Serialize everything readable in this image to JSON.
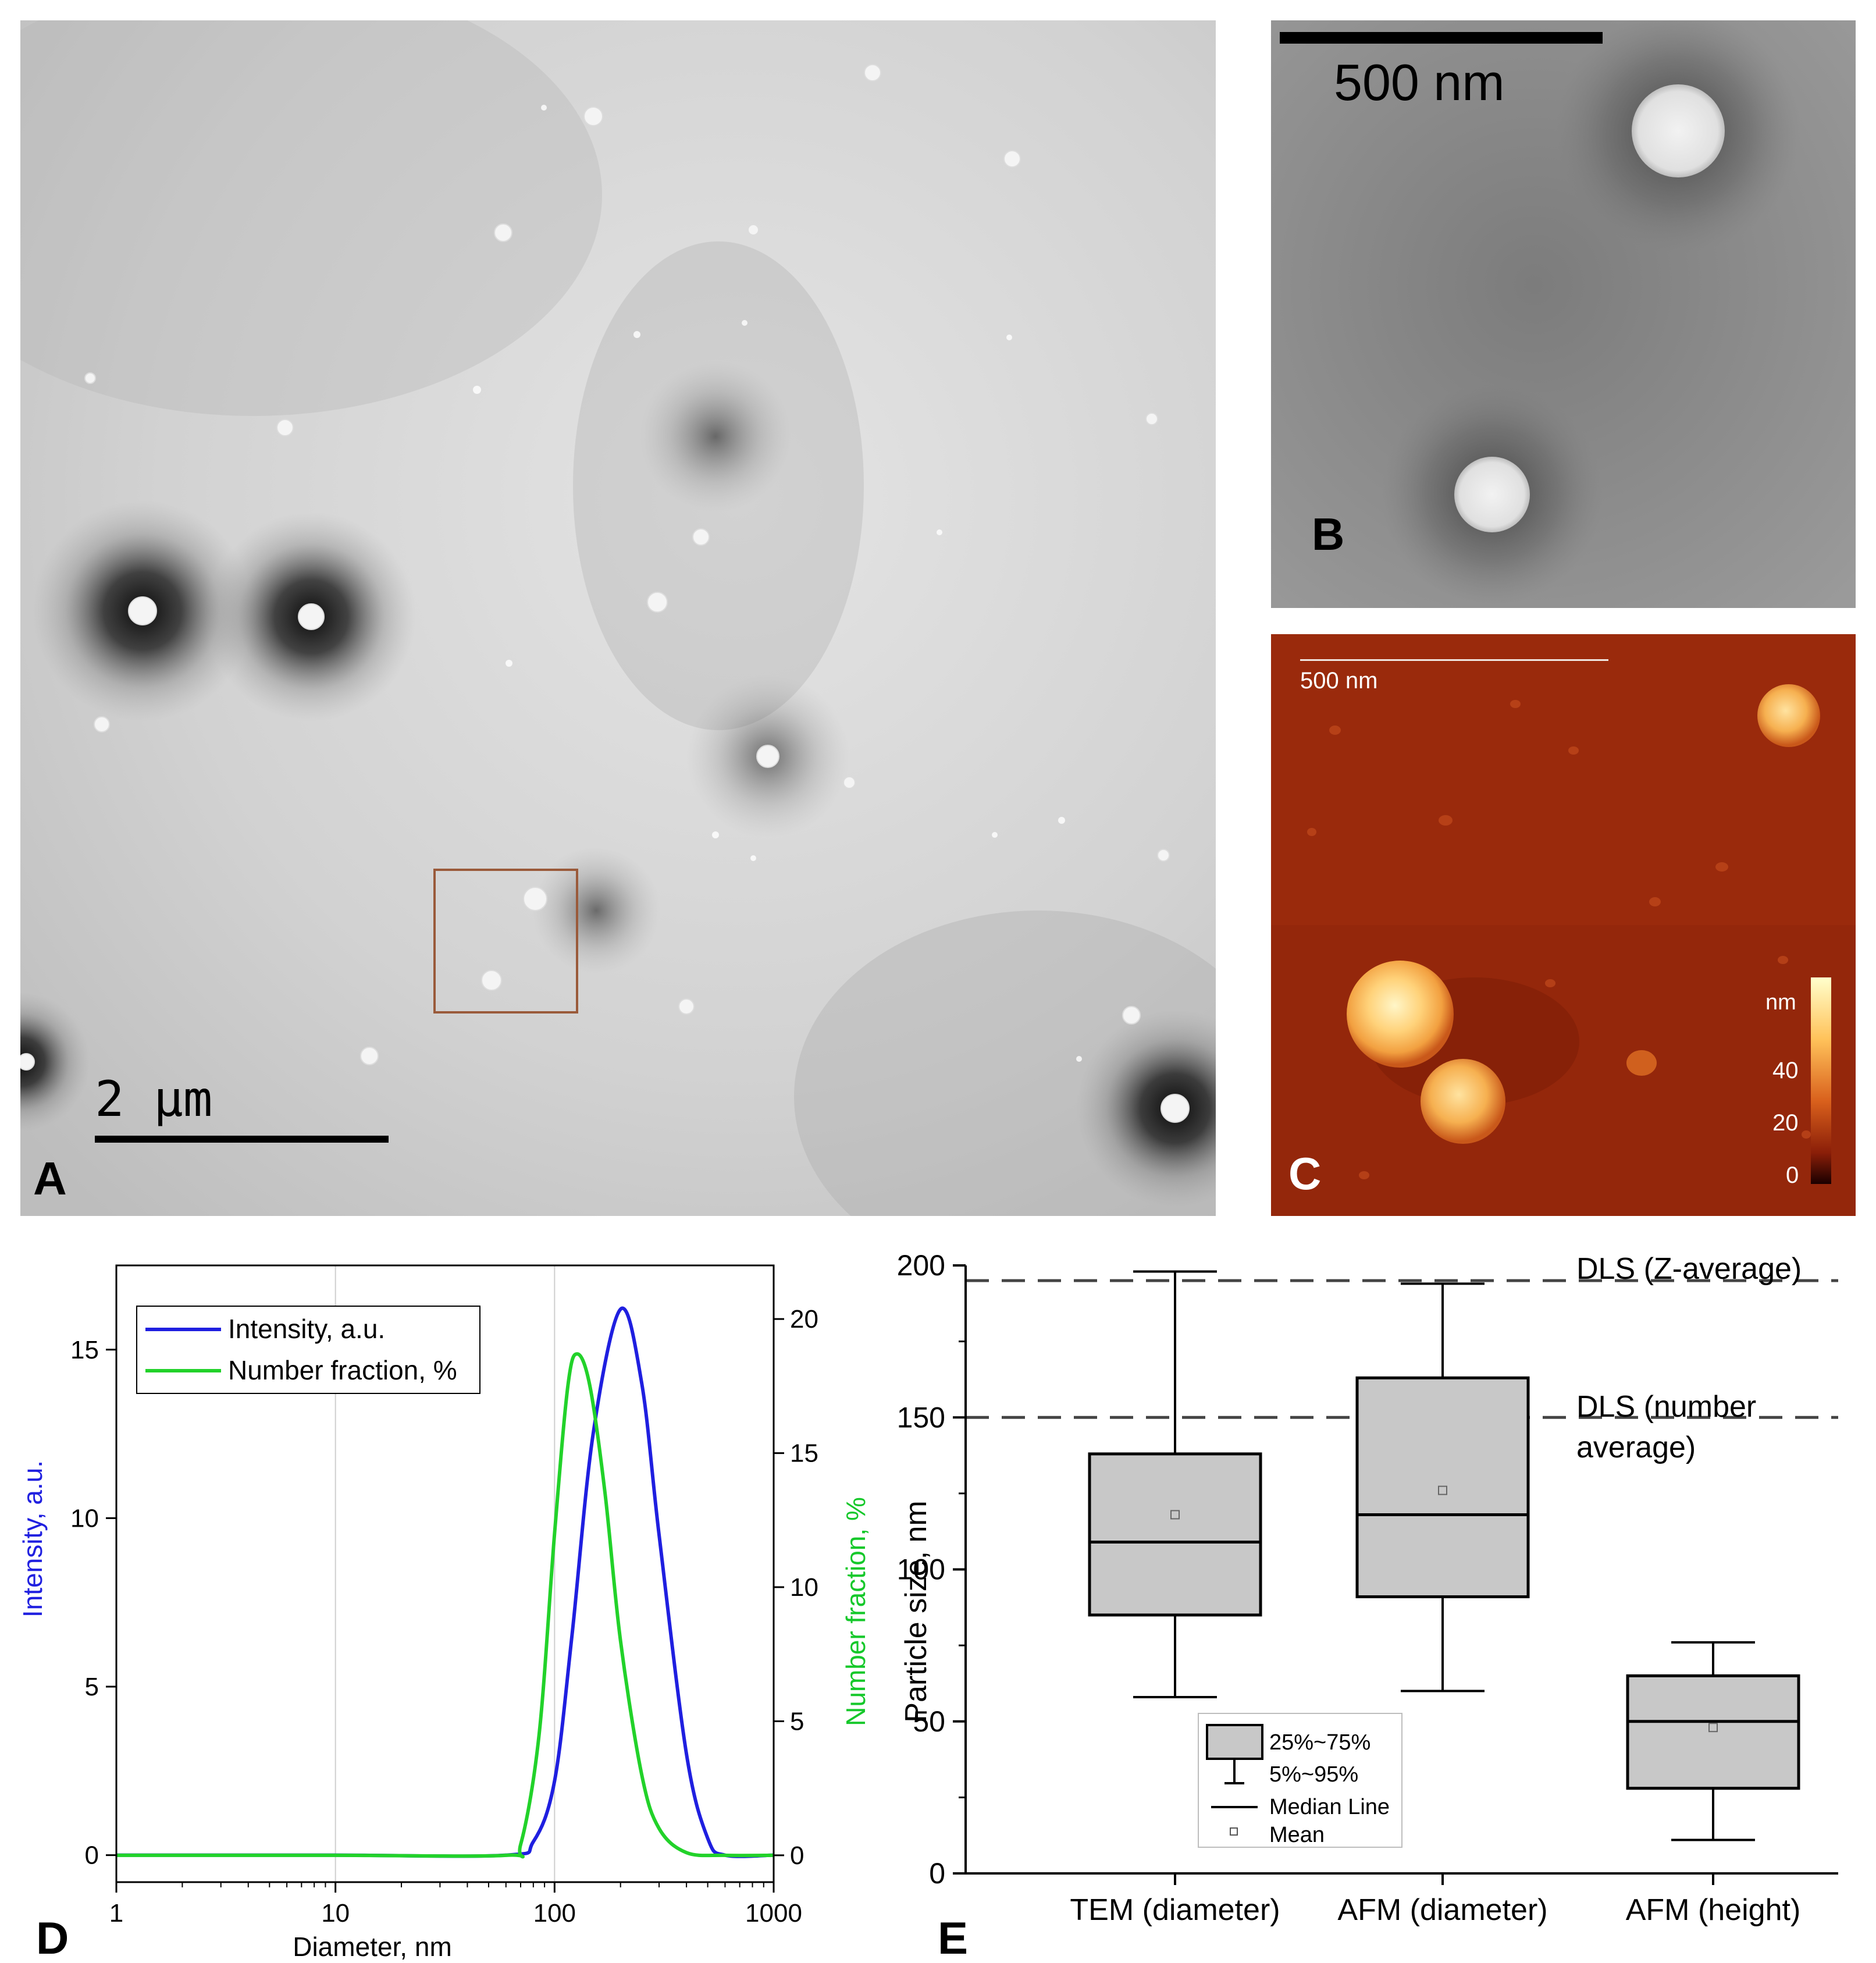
{
  "panelA": {
    "label": "A",
    "scale_text": "2 µm"
  },
  "panelB": {
    "label": "B",
    "scale_text": "500 nm"
  },
  "panelC": {
    "label": "C",
    "scale_text": "500 nm",
    "colorbar": {
      "unit": "nm",
      "ticks": [
        "40",
        "20",
        "0"
      ]
    }
  },
  "panelD": {
    "label": "D",
    "xlabel": "Diameter, nm",
    "ylabel_left": "Intensity, a.u.",
    "ylabel_right": "Number fraction, %",
    "xticks": [
      "1",
      "10",
      "100",
      "1000"
    ],
    "yticks_left": [
      "0",
      "5",
      "10",
      "15"
    ],
    "yticks_right": [
      "0",
      "5",
      "10",
      "15",
      "20"
    ],
    "legend": [
      "Intensity, a.u.",
      "Number fraction, %"
    ]
  },
  "panelE": {
    "label": "E",
    "ylabel": "Particle size, nm",
    "yticks": [
      "0",
      "50",
      "100",
      "150",
      "200"
    ],
    "categories": [
      "TEM (diameter)",
      "AFM (diameter)",
      "AFM (height)"
    ],
    "ref_line_1_text": "DLS (Z-average)",
    "ref_line_2_line1": "DLS (number",
    "ref_line_2_line2": "average)",
    "legend": [
      "25%~75%",
      "5%~95%",
      "Median Line",
      "Mean"
    ]
  },
  "chart_data": [
    {
      "type": "line",
      "title": "",
      "xlabel": "Diameter, nm",
      "ylabel": "Intensity, a.u.",
      "x_scale": "log",
      "xlim": [
        1,
        1000
      ],
      "ylim": [
        -0.8,
        17.5
      ],
      "y2label": "Number fraction, %",
      "y2lim": [
        -1,
        22
      ],
      "series": [
        {
          "name": "Intensity, a.u.",
          "axis": "left",
          "color": "#1f1fe0",
          "x": [
            1,
            10,
            60,
            80,
            100,
            120,
            150,
            200,
            250,
            300,
            400,
            500,
            600,
            1000
          ],
          "y": [
            0,
            0,
            0,
            0.4,
            2.2,
            6.5,
            12.5,
            16.2,
            14.0,
            9.5,
            3.0,
            0.5,
            0,
            0
          ]
        },
        {
          "name": "Number fraction, %",
          "axis": "right",
          "color": "#22d22a",
          "x": [
            1,
            10,
            60,
            70,
            85,
            100,
            115,
            127,
            145,
            170,
            200,
            250,
            300,
            400,
            600,
            1000
          ],
          "y": [
            0,
            0,
            0,
            0.4,
            4.5,
            12.0,
            17.5,
            18.7,
            17.5,
            13.5,
            8.0,
            3.0,
            1.0,
            0.1,
            0,
            0
          ]
        }
      ],
      "legend_position": "top-left",
      "grid": "vertical at decades"
    },
    {
      "type": "box",
      "title": "",
      "xlabel": "",
      "ylabel": "Particle size, nm",
      "ylim": [
        0,
        200
      ],
      "categories": [
        "TEM (diameter)",
        "AFM (diameter)",
        "AFM (height)"
      ],
      "boxes": [
        {
          "p5": 58,
          "q1": 85,
          "median": 109,
          "q3": 138,
          "p95": 198,
          "mean": 118
        },
        {
          "p5": 60,
          "q1": 91,
          "median": 118,
          "q3": 163,
          "p95": 194,
          "mean": 126
        },
        {
          "p5": 11,
          "q1": 28,
          "median": 50,
          "q3": 65,
          "p95": 76,
          "mean": 48
        }
      ],
      "reference_lines": [
        {
          "label": "DLS (Z-average)",
          "value": 195
        },
        {
          "label": "DLS (number average)",
          "value": 150
        }
      ],
      "legend_position": "bottom-center"
    }
  ]
}
